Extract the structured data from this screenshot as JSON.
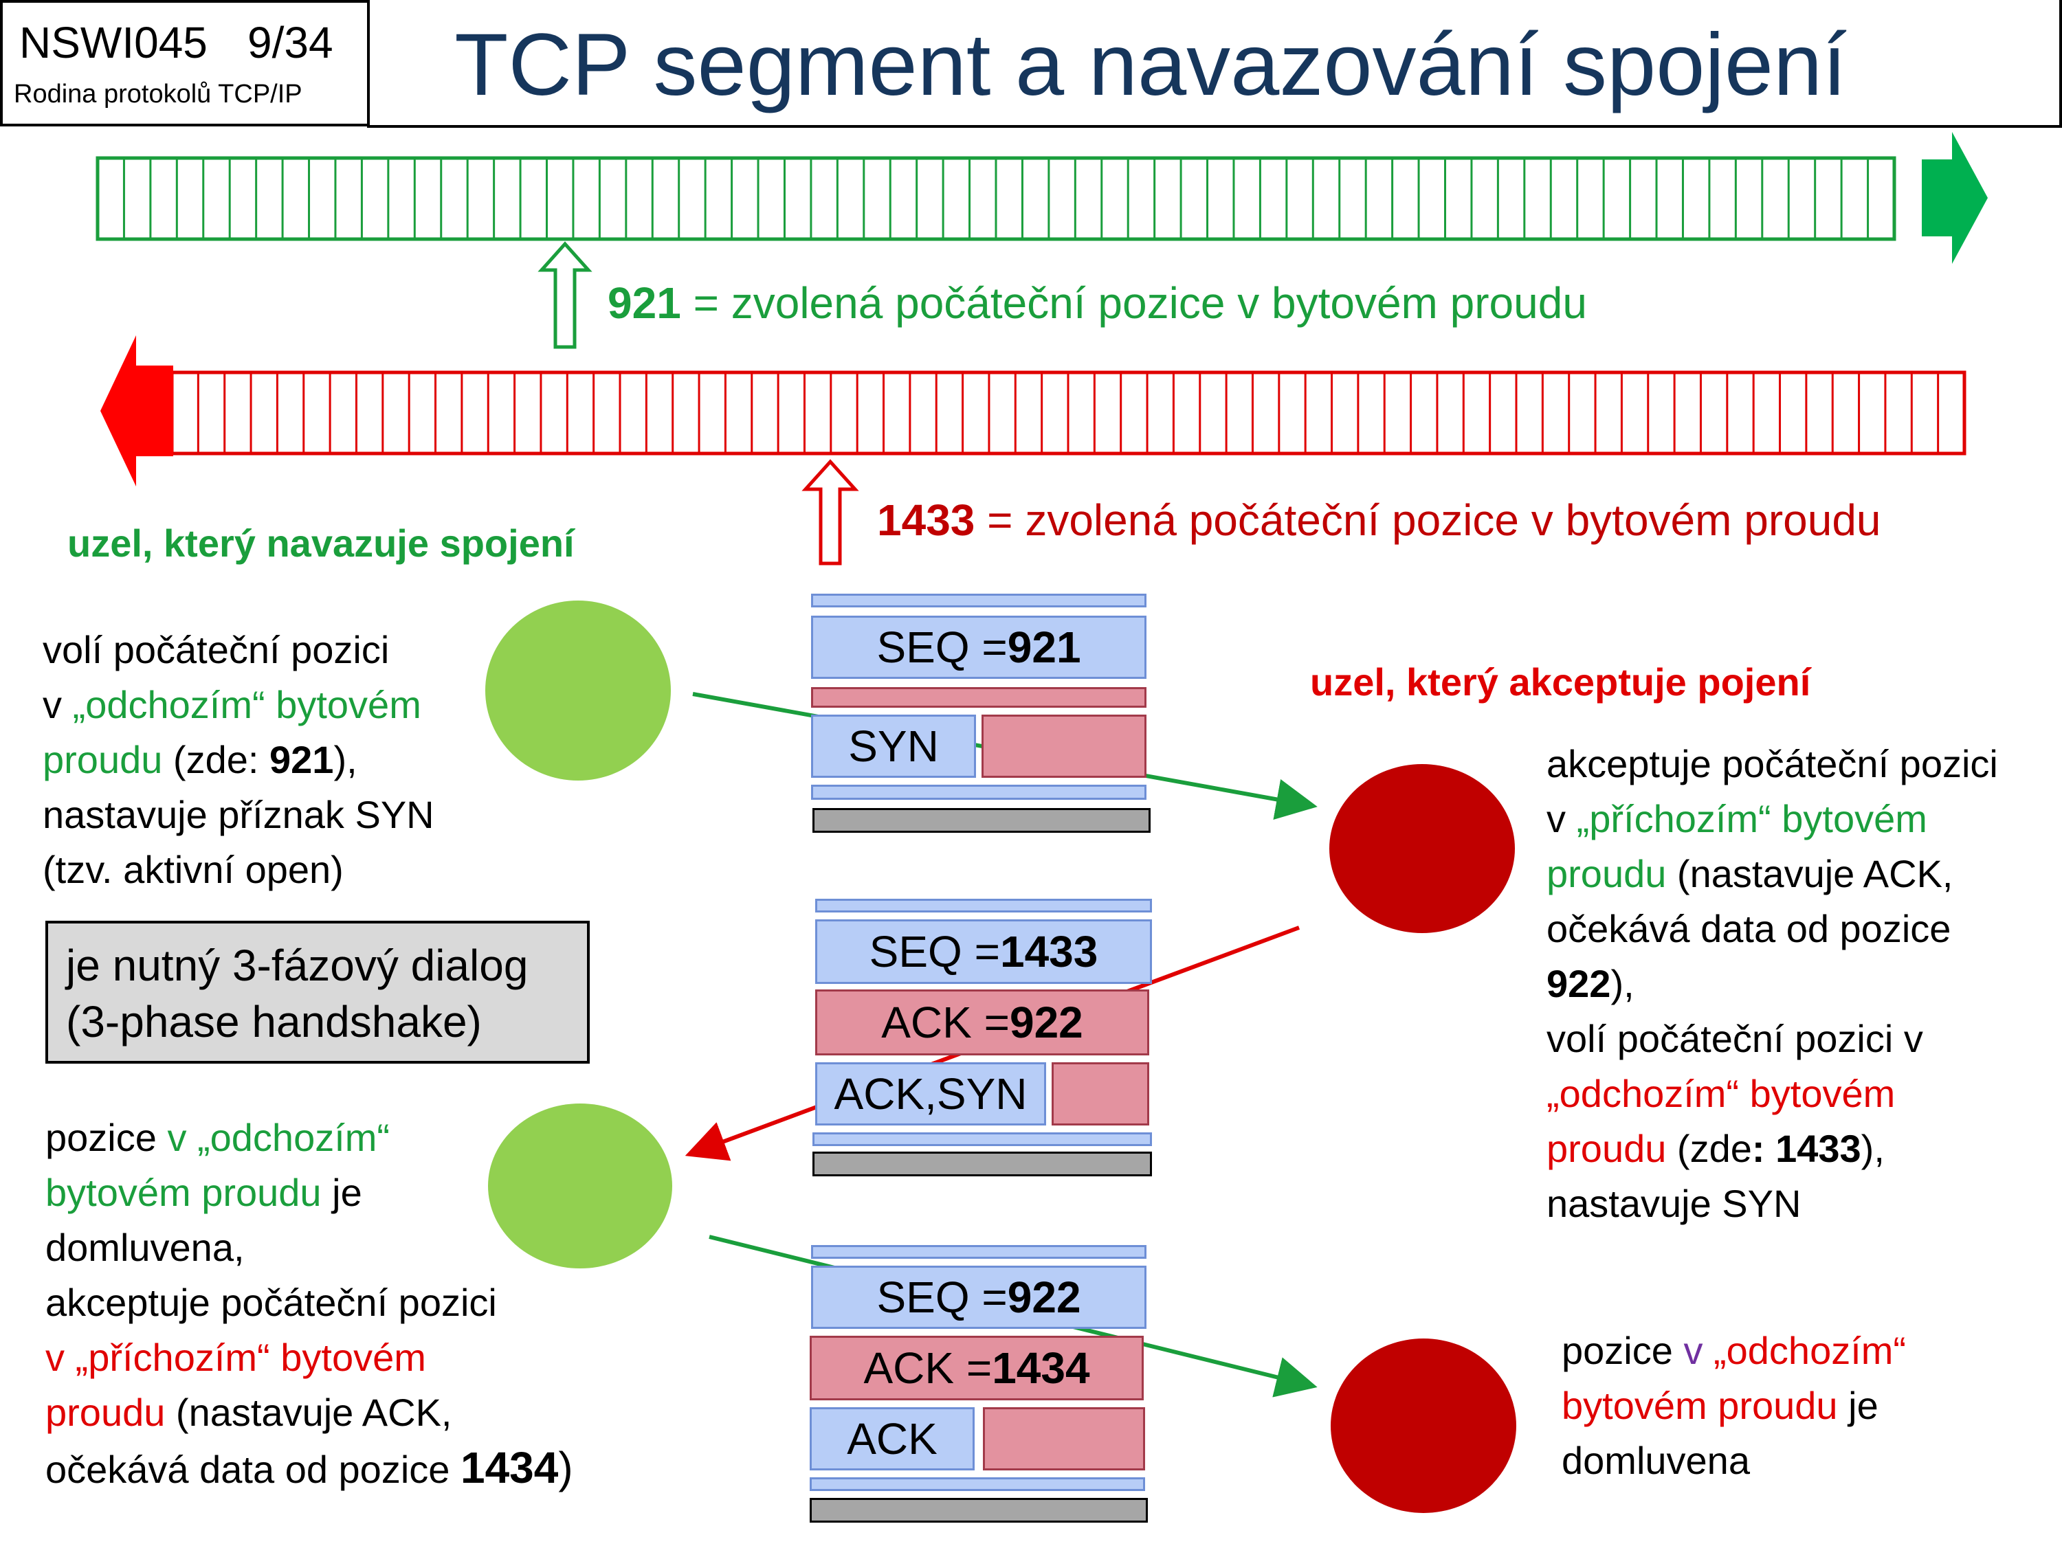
{
  "header": {
    "course_code": "NSWI045",
    "slide_number": "9/34",
    "course_name": "Rodina protokolů TCP/IP",
    "title": "TCP segment a navazování spojení"
  },
  "streams": {
    "green_number": "921",
    "green_text": " = zvolená počáteční pozice v bytovém proudu",
    "red_number": "1433",
    "red_text": " = zvolená počáteční pozice v bytovém proudu"
  },
  "initiator": {
    "heading": "uzel, který navazuje spojení",
    "step1": {
      "line1": "volí počáteční pozici",
      "line2_a": "v ",
      "line2_b": "„odchozím“ bytovém",
      "line3_a": "proudu",
      "line3_b": " (zde: ",
      "line3_c": "921",
      "line3_d": "),",
      "line4": "nastavuje příznak SYN",
      "line5": "(tzv. aktivní open)"
    },
    "note_line1": "je nutný 3-fázový dialog",
    "note_line2": "(3-phase handshake)",
    "step3": {
      "line1_a": "pozice ",
      "line1_b": "v „odchozím“",
      "line2_a": "bytovém proudu",
      "line2_b": " je",
      "line3": "domluvena,",
      "line4": "akceptuje počáteční pozici",
      "line5": "v „příchozím“ bytovém",
      "line6_a": "proudu",
      "line6_b": " (nastavuje ACK,",
      "line7_a": "očekává data od pozice  ",
      "line7_b": "1434",
      "line7_c": ")"
    }
  },
  "acceptor": {
    "heading": "uzel, který akceptuje pojení",
    "step2": {
      "line1": "akceptuje počáteční pozici",
      "line2_a": "v ",
      "line2_b": "„příchozím“ bytovém",
      "line3_a": "proudu",
      "line3_b": " (nastavuje ACK,",
      "line4": "očekává data od pozice",
      "line5_a": "922",
      "line5_b": "),",
      "line6": "volí počáteční pozici v",
      "line7": "„odchozím“ bytovém",
      "line8_a": "proudu",
      "line8_b": " (zde",
      "line8_c": ": 1433",
      "line8_d": "),",
      "line9": "nastavuje SYN"
    },
    "final": {
      "line1_a": "pozice ",
      "line1_b": "v",
      "line1_c": " „odchozím“",
      "line2_a": "bytovém proudu",
      "line2_b": " je",
      "line3": "domluvena"
    }
  },
  "segments": [
    {
      "seq_label": "SEQ = ",
      "seq_value": "921",
      "flags": "SYN"
    },
    {
      "seq_label": "SEQ = ",
      "seq_value": "1433",
      "ack_label": "ACK = ",
      "ack_value": "922",
      "flags": "ACK,SYN"
    },
    {
      "seq_label": "SEQ = ",
      "seq_value": "922",
      "ack_label": "ACK = ",
      "ack_value": "1434",
      "flags": "ACK"
    }
  ],
  "colors": {
    "title": "#16365c",
    "green": "#1a9e3c",
    "red": "#e00000",
    "dark_red": "#c00000",
    "light_green": "#92d050",
    "segment_blue": "#b7cdf7",
    "segment_pink": "#e3929f"
  }
}
